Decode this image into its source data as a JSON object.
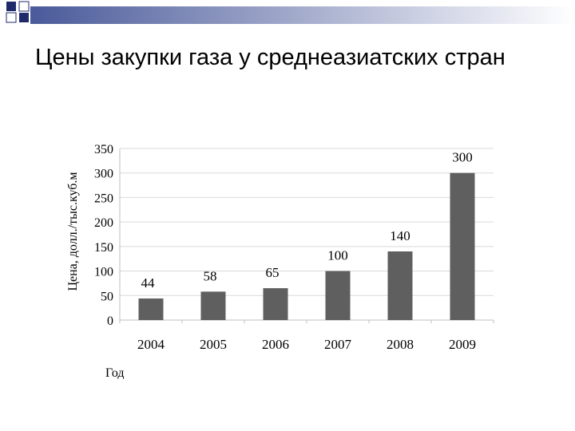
{
  "slide": {
    "title": "Цены закупки газа у среднеазиатских стран"
  },
  "colors": {
    "bar": "#5f5f5f",
    "grid": "#d9d9d9",
    "axis": "#bfbfbf",
    "deco_dark": "#1f2a6b",
    "deco_light": "#ffffff",
    "deco_gradient_start": "#4a5a9a",
    "deco_gradient_end": "#ffffff"
  },
  "chart_data": {
    "type": "bar",
    "categories": [
      "2004",
      "2005",
      "2006",
      "2007",
      "2008",
      "2009"
    ],
    "values": [
      44,
      58,
      65,
      100,
      140,
      300
    ],
    "data_labels": [
      "44",
      "58",
      "65",
      "100",
      "140",
      "300"
    ],
    "xlabel": "Год",
    "ylabel": "Цена, долл./тыс.куб.м",
    "ylim": [
      0,
      350
    ],
    "yticks": [
      "0",
      "50",
      "100",
      "150",
      "200",
      "250",
      "300",
      "350"
    ],
    "grid": true,
    "legend": "none"
  }
}
